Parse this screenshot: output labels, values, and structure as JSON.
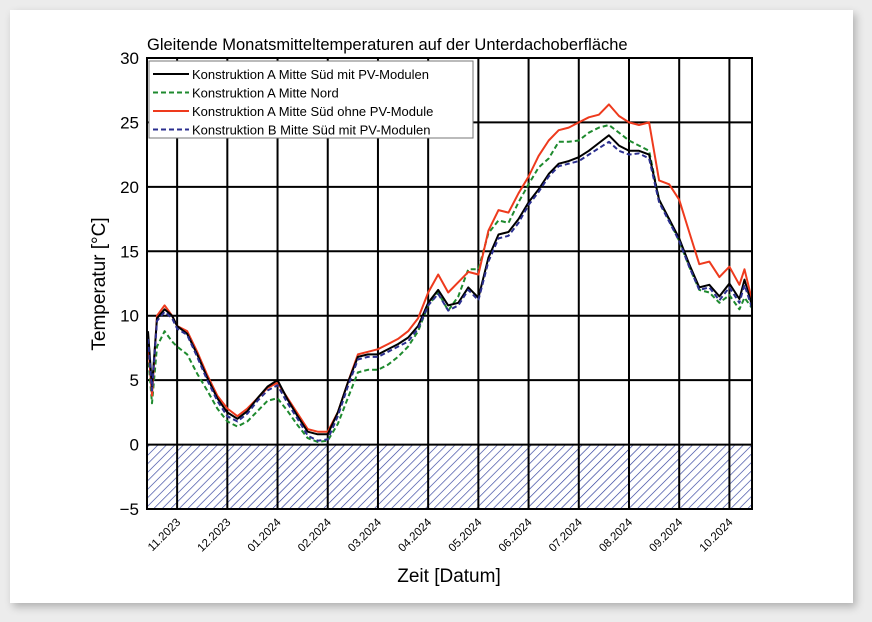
{
  "chart_data": {
    "type": "line",
    "title": "Gleitende Monatsmitteltemperaturen auf der Unterdachoberfläche",
    "xlabel": "Zeit [Datum]",
    "ylabel": "Temperatur [°C]",
    "ylim": [
      -5,
      30
    ],
    "yticks": [
      30,
      25,
      20,
      15,
      10,
      5,
      0,
      -5
    ],
    "categories": [
      "11.2023",
      "12.2023",
      "01.2024",
      "02.2024",
      "03.2024",
      "04.2024",
      "05.2024",
      "06.2024",
      "07.2024",
      "08.2024",
      "09.2024",
      "10.2024"
    ],
    "x_note": "x values are fractional month index; 0 = 11.2023 tick",
    "xlim": [
      -0.6,
      11.45
    ],
    "grid": true,
    "legend_position": "upper left",
    "shaded_region": {
      "from": -5,
      "to": 0,
      "pattern": "diagonal-hatch",
      "color": "#2b3a9a"
    },
    "x": [
      -0.58,
      -0.5,
      -0.4,
      -0.25,
      -0.1,
      0.0,
      0.2,
      0.4,
      0.6,
      0.8,
      1.0,
      1.2,
      1.4,
      1.6,
      1.8,
      2.0,
      2.2,
      2.4,
      2.6,
      2.8,
      3.0,
      3.2,
      3.4,
      3.6,
      3.8,
      4.0,
      4.2,
      4.4,
      4.6,
      4.8,
      5.0,
      5.2,
      5.4,
      5.6,
      5.8,
      6.0,
      6.2,
      6.4,
      6.6,
      6.8,
      7.0,
      7.2,
      7.4,
      7.6,
      7.8,
      8.0,
      8.2,
      8.4,
      8.6,
      8.8,
      9.0,
      9.2,
      9.4,
      9.6,
      9.8,
      10.0,
      10.2,
      10.4,
      10.6,
      10.8,
      11.0,
      11.2,
      11.3,
      11.45
    ],
    "series": [
      {
        "name": "Konstruktion A Mitte Süd mit PV-Modulen",
        "color": "#000000",
        "dash": "solid",
        "values": [
          8.8,
          4.5,
          9.8,
          10.5,
          10.0,
          9.2,
          8.6,
          7.0,
          5.2,
          3.6,
          2.5,
          2.0,
          2.6,
          3.6,
          4.5,
          5.0,
          3.5,
          2.2,
          1.0,
          0.8,
          0.8,
          2.5,
          4.8,
          6.8,
          7.0,
          7.0,
          7.4,
          7.8,
          8.3,
          9.2,
          11.0,
          12.0,
          10.8,
          11.0,
          12.2,
          11.4,
          14.5,
          16.3,
          16.5,
          17.5,
          18.8,
          19.8,
          21.0,
          21.8,
          22.0,
          22.3,
          22.8,
          23.4,
          24.0,
          23.2,
          22.8,
          22.8,
          22.5,
          19.0,
          17.5,
          16.0,
          14.0,
          12.2,
          12.4,
          11.5,
          12.5,
          11.3,
          12.8,
          10.8
        ]
      },
      {
        "name": "Konstruktion A Mitte Nord",
        "color": "#1e8a2e",
        "dash": "dashed",
        "values": [
          7.0,
          3.2,
          7.6,
          8.8,
          8.0,
          7.6,
          7.0,
          5.5,
          4.2,
          2.8,
          1.8,
          1.4,
          1.8,
          2.6,
          3.4,
          3.6,
          2.6,
          1.5,
          0.5,
          0.2,
          0.3,
          1.6,
          3.6,
          5.6,
          5.8,
          5.8,
          6.2,
          6.8,
          7.6,
          8.8,
          10.8,
          11.8,
          10.4,
          11.5,
          13.6,
          13.6,
          16.4,
          17.4,
          17.2,
          18.8,
          20.2,
          21.5,
          22.2,
          23.5,
          23.5,
          23.6,
          24.2,
          24.6,
          24.8,
          24.2,
          23.6,
          23.2,
          22.8,
          19.0,
          17.4,
          15.8,
          13.8,
          12.0,
          11.8,
          11.0,
          11.6,
          10.5,
          11.4,
          10.6
        ]
      },
      {
        "name": "Konstruktion A Mitte Süd ohne PV-Module",
        "color": "#ee3a1d",
        "dash": "solid",
        "values": [
          8.0,
          3.8,
          10.0,
          10.8,
          10.0,
          9.2,
          8.8,
          7.2,
          5.4,
          3.8,
          2.8,
          2.2,
          2.8,
          3.6,
          4.4,
          4.8,
          3.6,
          2.4,
          1.2,
          1.0,
          1.0,
          2.5,
          4.8,
          7.0,
          7.2,
          7.4,
          7.8,
          8.2,
          8.8,
          9.8,
          11.8,
          13.2,
          11.8,
          12.6,
          13.4,
          13.2,
          16.6,
          18.2,
          18.0,
          19.5,
          20.8,
          22.4,
          23.6,
          24.4,
          24.6,
          25.0,
          25.4,
          25.6,
          26.4,
          25.5,
          25.0,
          24.8,
          25.0,
          20.5,
          20.2,
          19.0,
          16.5,
          14.0,
          14.2,
          13.0,
          13.8,
          12.4,
          13.6,
          11.2
        ]
      },
      {
        "name": "Konstruktion B Mitte Süd mit PV-Modulen",
        "color": "#2b2f8f",
        "dash": "dashed",
        "values": [
          8.2,
          4.2,
          9.6,
          10.3,
          9.8,
          9.0,
          8.5,
          6.8,
          5.0,
          3.4,
          2.2,
          1.8,
          2.4,
          3.4,
          4.2,
          4.6,
          3.2,
          2.0,
          0.7,
          0.3,
          0.4,
          2.2,
          4.5,
          6.6,
          6.8,
          6.8,
          7.2,
          7.6,
          8.0,
          9.0,
          10.8,
          11.7,
          10.4,
          10.8,
          12.0,
          11.2,
          14.2,
          16.0,
          16.2,
          17.2,
          18.6,
          19.6,
          20.8,
          21.6,
          21.8,
          22.0,
          22.5,
          23.0,
          23.5,
          22.8,
          22.5,
          22.6,
          22.2,
          18.8,
          17.3,
          15.8,
          13.8,
          12.0,
          12.2,
          11.2,
          12.2,
          11.0,
          12.4,
          10.6
        ]
      }
    ]
  }
}
